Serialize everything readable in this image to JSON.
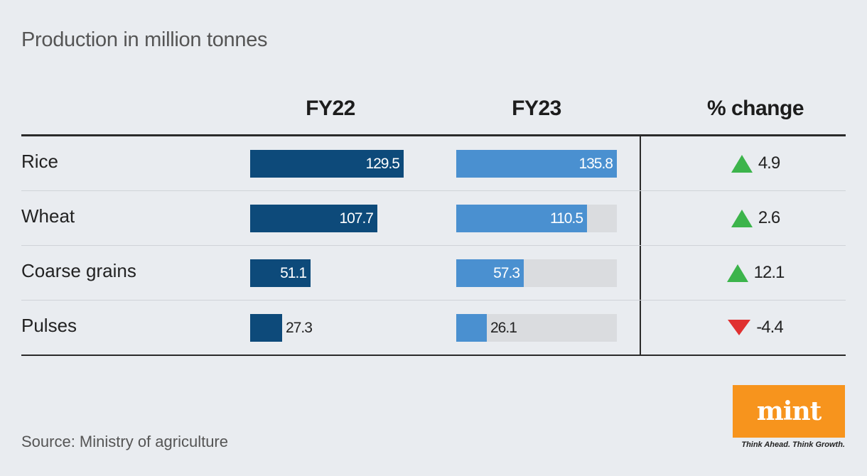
{
  "subtitle": "Production in million tonnes",
  "headers": {
    "fy22": "FY22",
    "fy23": "FY23",
    "change": "% change"
  },
  "colors": {
    "fy22_bar": "#0d4a7a",
    "fy23_bar": "#4a90d0",
    "track": "#dadcdf",
    "increase": "#3cb44b",
    "decrease": "#e03030",
    "brand": "#f7941d"
  },
  "chart_data": {
    "type": "bar",
    "categories": [
      "Rice",
      "Wheat",
      "Coarse grains",
      "Pulses"
    ],
    "series": [
      {
        "name": "FY22",
        "values": [
          129.5,
          107.7,
          51.1,
          27.3
        ],
        "labels": [
          "129.5",
          "107.7",
          "51.1",
          "27.3"
        ]
      },
      {
        "name": "FY23",
        "values": [
          135.8,
          110.5,
          57.3,
          26.1
        ],
        "labels": [
          "135.8",
          "110.5",
          "57.3",
          "26.1"
        ]
      },
      {
        "name": "% change",
        "values": [
          4.9,
          2.6,
          12.1,
          -4.4
        ],
        "labels": [
          "4.9",
          "2.6",
          "12.1",
          "-4.4"
        ]
      }
    ],
    "xlim": [
      0,
      135.8
    ]
  },
  "footer": {
    "source": "Source: Ministry of agriculture",
    "logo": "mint",
    "tagline": "Think Ahead. Think Growth."
  }
}
